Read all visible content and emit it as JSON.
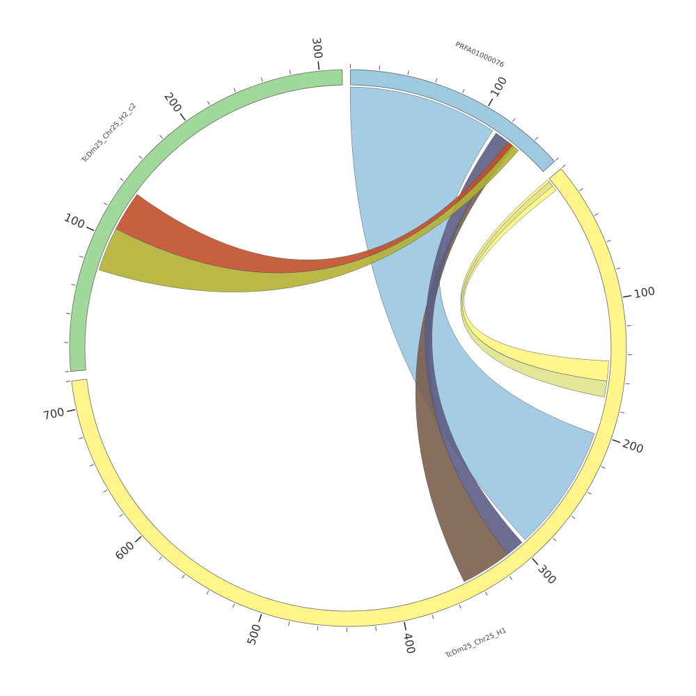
{
  "chart_data": {
    "type": "circos",
    "segments": [
      {
        "name": "PRFA01000076",
        "length": 160,
        "color": "#9ecae1",
        "ticks": [
          100
        ]
      },
      {
        "name": "TcDm25_Chr25_H1",
        "length": 720,
        "color": "#fff58a",
        "ticks": [
          100,
          200,
          300,
          400,
          500,
          600,
          700
        ]
      },
      {
        "name": "TcDm25_Chr25_H2_c2",
        "length": 316,
        "color": "#a1d99b",
        "ticks": [
          100,
          200,
          300
        ]
      }
    ],
    "minor_tick_step": 20,
    "links": [
      {
        "from": "PRFA01000076",
        "from_range": [
          0,
          112
        ],
        "to": "TcDm25_Chr25_H1",
        "to_range": [
          200,
          295
        ],
        "color": "#9ac8e2"
      },
      {
        "from": "TcDm25_Chr25_H1",
        "from_range": [
          0,
          10
        ],
        "to": "TcDm25_Chr25_H1",
        "to_range": [
          145,
          160
        ],
        "color": "#fff580"
      },
      {
        "from": "TcDm25_Chr25_H1",
        "from_range": [
          2,
          6
        ],
        "to": "TcDm25_Chr25_H1",
        "to_range": [
          160,
          172
        ],
        "color": "#dfe38c"
      },
      {
        "from": "PRFA01000076",
        "from_range": [
          128,
          132
        ],
        "to": "TcDm25_Chr25_H1",
        "to_range": [
          312,
          350
        ],
        "color": "#7a5e4c"
      },
      {
        "from": "PRFA01000076",
        "from_range": [
          115,
          128
        ],
        "to": "TcDm25_Chr25_H1",
        "to_range": [
          298,
          312
        ],
        "color": "#5d5d85"
      },
      {
        "from": "TcDm25_Chr25_H2_c2",
        "from_range": [
          108,
          138
        ],
        "to": "PRFA01000076",
        "to_range": [
          126,
          130
        ],
        "color": "#c0502a"
      },
      {
        "from": "TcDm25_Chr25_H2_c2",
        "from_range": [
          75,
          108
        ],
        "to": "PRFA01000076",
        "to_range": [
          130,
          136
        ],
        "color": "#b3b032"
      }
    ]
  }
}
